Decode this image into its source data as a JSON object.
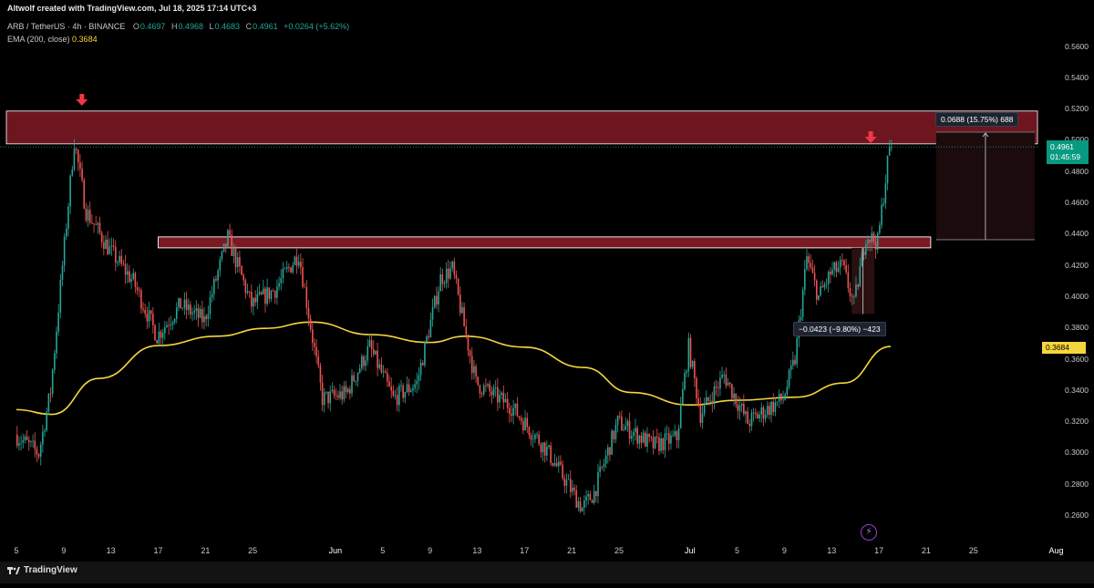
{
  "header": {
    "credit": "Altwolf created with TradingView.com, Jul 18, 2025 17:14 UTC+3",
    "symbol": "ARB / TetherUS · 4h · BINANCE",
    "ohlc": {
      "o_label": "O",
      "o": "0.4697",
      "h_label": "H",
      "h": "0.4968",
      "l_label": "L",
      "l": "0.4683",
      "c_label": "C",
      "c": "0.4961",
      "change": "+0.0264 (+5.62%)"
    },
    "ema_label": "EMA (200, close)",
    "ema_value": "0.3684"
  },
  "colors": {
    "background": "#000000",
    "up": "#26a69a",
    "down": "#ef5350",
    "ema": "#f5d63d",
    "zone": "#7a1a22",
    "arrow": "#f23645"
  },
  "price_axis": {
    "ticks": [
      "0.5600",
      "0.5400",
      "0.5200",
      "0.5000",
      "0.4800",
      "0.4600",
      "0.4400",
      "0.4200",
      "0.4000",
      "0.3800",
      "0.3600",
      "0.3400",
      "0.3200",
      "0.3000",
      "0.2800",
      "0.2600"
    ],
    "last_price": "0.4961",
    "countdown": "01:45:59",
    "ema_price": "0.3684"
  },
  "time_axis": {
    "labels": [
      "5",
      "9",
      "13",
      "17",
      "21",
      "25",
      "Jun",
      "5",
      "9",
      "13",
      "17",
      "21",
      "25",
      "Jul",
      "5",
      "9",
      "13",
      "17",
      "21",
      "25",
      "Aug"
    ]
  },
  "measurements": {
    "up": "0.0688 (15.75%) 688",
    "down": "−0.0423 (−9.80%) −423"
  },
  "icons": {
    "arrow_top_left": "down-arrow-icon",
    "arrow_top_right": "down-arrow-icon",
    "flash": "lightning-icon",
    "brand": "tradingview-logo-icon"
  },
  "footer": {
    "brand": "TradingView"
  },
  "chart_data": {
    "type": "candlestick",
    "symbol": "ARB / TetherUS",
    "interval": "4h",
    "ylim": [
      0.25,
      0.57
    ],
    "x_range": [
      "2025-05-05",
      "2025-08-01"
    ],
    "zones": [
      {
        "name": "upper-resistance",
        "from": 0.498,
        "to": 0.519
      },
      {
        "name": "mid-resistance",
        "from": 0.4315,
        "to": 0.4385
      }
    ],
    "price_path": [
      {
        "date": "2025-05-05",
        "price": 0.312
      },
      {
        "date": "2025-05-07",
        "price": 0.3
      },
      {
        "date": "2025-05-08",
        "price": 0.34
      },
      {
        "date": "2025-05-09",
        "price": 0.42
      },
      {
        "date": "2025-05-10",
        "price": 0.5
      },
      {
        "date": "2025-05-11",
        "price": 0.455
      },
      {
        "date": "2025-05-13",
        "price": 0.43
      },
      {
        "date": "2025-05-15",
        "price": 0.41
      },
      {
        "date": "2025-05-17",
        "price": 0.375
      },
      {
        "date": "2025-05-19",
        "price": 0.395
      },
      {
        "date": "2025-05-21",
        "price": 0.385
      },
      {
        "date": "2025-05-23",
        "price": 0.438
      },
      {
        "date": "2025-05-25",
        "price": 0.395
      },
      {
        "date": "2025-05-27",
        "price": 0.405
      },
      {
        "date": "2025-05-29",
        "price": 0.428
      },
      {
        "date": "2025-05-31",
        "price": 0.335
      },
      {
        "date": "2025-06-02",
        "price": 0.338
      },
      {
        "date": "2025-06-04",
        "price": 0.368
      },
      {
        "date": "2025-06-06",
        "price": 0.335
      },
      {
        "date": "2025-06-08",
        "price": 0.345
      },
      {
        "date": "2025-06-10",
        "price": 0.412
      },
      {
        "date": "2025-06-11",
        "price": 0.418
      },
      {
        "date": "2025-06-13",
        "price": 0.345
      },
      {
        "date": "2025-06-16",
        "price": 0.33
      },
      {
        "date": "2025-06-19",
        "price": 0.302
      },
      {
        "date": "2025-06-22",
        "price": 0.265
      },
      {
        "date": "2025-06-23",
        "price": 0.275
      },
      {
        "date": "2025-06-25",
        "price": 0.32
      },
      {
        "date": "2025-06-28",
        "price": 0.305
      },
      {
        "date": "2025-06-30",
        "price": 0.31
      },
      {
        "date": "2025-07-01",
        "price": 0.368
      },
      {
        "date": "2025-07-02",
        "price": 0.325
      },
      {
        "date": "2025-07-04",
        "price": 0.35
      },
      {
        "date": "2025-07-06",
        "price": 0.32
      },
      {
        "date": "2025-07-09",
        "price": 0.335
      },
      {
        "date": "2025-07-10",
        "price": 0.36
      },
      {
        "date": "2025-07-11",
        "price": 0.425
      },
      {
        "date": "2025-07-12",
        "price": 0.4
      },
      {
        "date": "2025-07-13",
        "price": 0.415
      },
      {
        "date": "2025-07-14",
        "price": 0.42
      },
      {
        "date": "2025-07-15",
        "price": 0.395
      },
      {
        "date": "2025-07-16",
        "price": 0.44
      },
      {
        "date": "2025-07-17",
        "price": 0.435
      },
      {
        "date": "2025-07-18",
        "price": 0.4961
      }
    ],
    "ema_path": [
      {
        "date": "2025-05-05",
        "price": 0.328
      },
      {
        "date": "2025-05-08",
        "price": 0.325
      },
      {
        "date": "2025-05-12",
        "price": 0.348
      },
      {
        "date": "2025-05-17",
        "price": 0.369
      },
      {
        "date": "2025-05-22",
        "price": 0.375
      },
      {
        "date": "2025-05-26",
        "price": 0.38
      },
      {
        "date": "2025-05-30",
        "price": 0.384
      },
      {
        "date": "2025-06-04",
        "price": 0.376
      },
      {
        "date": "2025-06-09",
        "price": 0.371
      },
      {
        "date": "2025-06-12",
        "price": 0.375
      },
      {
        "date": "2025-06-17",
        "price": 0.368
      },
      {
        "date": "2025-06-22",
        "price": 0.355
      },
      {
        "date": "2025-06-26",
        "price": 0.339
      },
      {
        "date": "2025-07-01",
        "price": 0.331
      },
      {
        "date": "2025-07-05",
        "price": 0.334
      },
      {
        "date": "2025-07-10",
        "price": 0.336
      },
      {
        "date": "2025-07-14",
        "price": 0.345
      },
      {
        "date": "2025-07-18",
        "price": 0.3684
      }
    ]
  }
}
